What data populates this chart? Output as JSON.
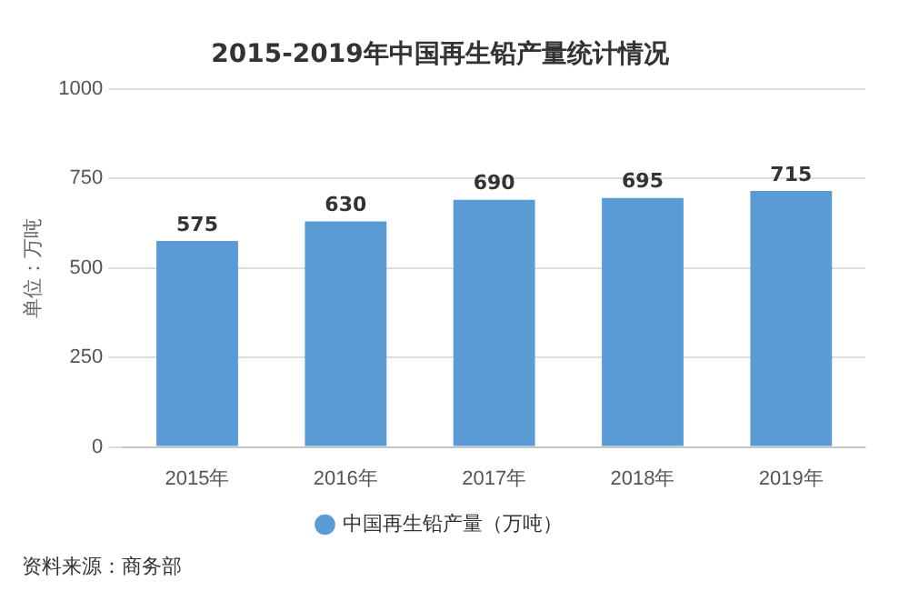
{
  "chart_data": {
    "type": "bar",
    "title": "2015-2019年中国再生铅产量统计情况",
    "ylabel": "单位：万吨",
    "categories": [
      "2015年",
      "2016年",
      "2017年",
      "2018年",
      "2019年"
    ],
    "series": [
      {
        "name": "中国再生铅产量（万吨）",
        "color": "#5b9bd5",
        "values": [
          575,
          630,
          690,
          695,
          715
        ]
      }
    ],
    "ylim": [
      0,
      1000
    ],
    "yticks": [
      0,
      250,
      500,
      750,
      1000
    ],
    "grid": "y",
    "legend": "bottom",
    "data_labels": true,
    "annotations": [
      "资料来源：商务部"
    ]
  }
}
